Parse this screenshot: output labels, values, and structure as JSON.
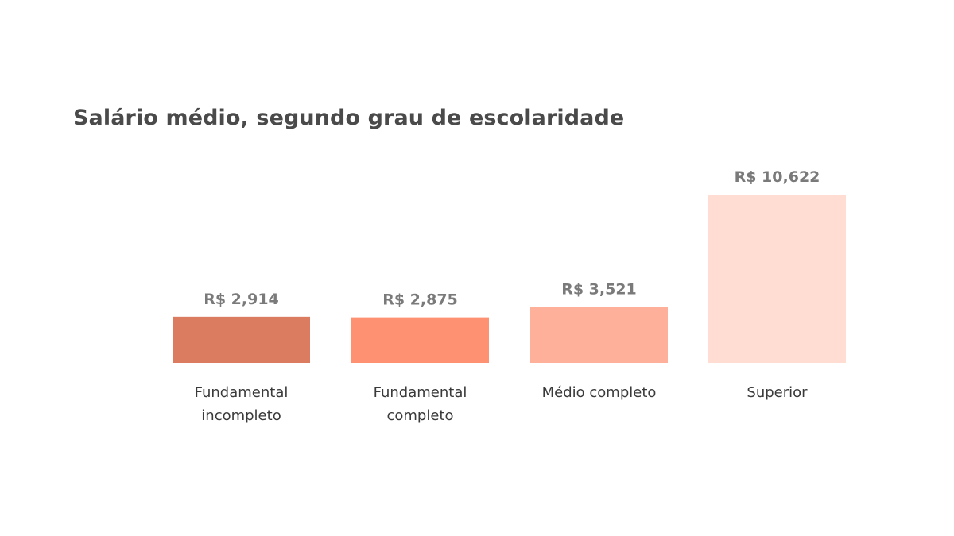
{
  "chart_data": {
    "type": "bar",
    "title": "Salário médio, segundo grau de escolaridade",
    "categories": [
      [
        "Fundamental",
        "incompleto"
      ],
      [
        "Fundamental",
        "completo"
      ],
      [
        "Médio completo"
      ],
      [
        "Superior"
      ]
    ],
    "values": [
      2914,
      2875,
      3521,
      10622
    ],
    "value_labels": [
      "R$ 2,914",
      "R$ 2,875",
      "R$ 3,521",
      "R$ 10,622"
    ],
    "colors": [
      "#db7c60",
      "#ff9173",
      "#ffb09a",
      "#ffddd3"
    ],
    "xlabel": "",
    "ylabel": "",
    "ylim": [
      0,
      10622
    ],
    "grid": false,
    "legend": "none"
  }
}
